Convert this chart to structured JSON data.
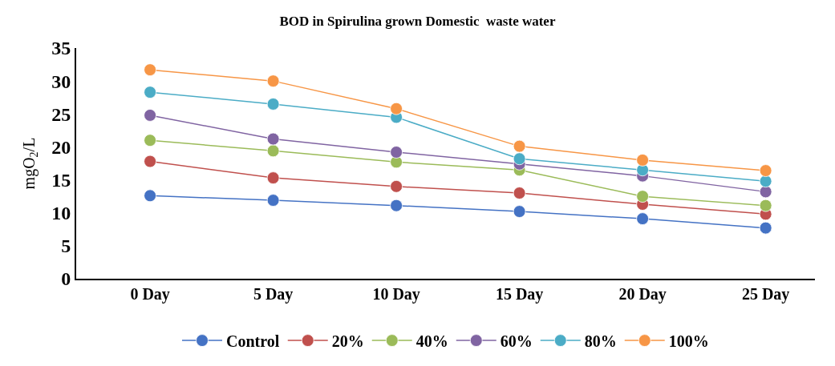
{
  "chart_data": {
    "type": "line",
    "title": "BOD in Spirulina grown Domestic  waste water",
    "ylabel": "mgO$_{2}$/L",
    "categories": [
      "0 Day",
      "5 Day",
      "10 Day",
      "15 Day",
      "20 Day",
      "25 Day"
    ],
    "series": [
      {
        "name": "Control",
        "color": "#4472c4",
        "values": [
          12.6,
          11.9,
          11.1,
          10.2,
          9.1,
          7.7
        ]
      },
      {
        "name": "20%",
        "color": "#c0504d",
        "values": [
          17.8,
          15.3,
          14.0,
          13.0,
          11.3,
          9.8
        ]
      },
      {
        "name": "40%",
        "color": "#9bbb59",
        "values": [
          21.0,
          19.4,
          17.7,
          16.5,
          12.5,
          11.1
        ]
      },
      {
        "name": "60%",
        "color": "#8064a2",
        "values": [
          24.8,
          21.2,
          19.2,
          17.4,
          15.6,
          13.2
        ]
      },
      {
        "name": "80%",
        "color": "#4bacc6",
        "values": [
          28.3,
          26.5,
          24.5,
          18.2,
          16.5,
          14.8
        ]
      },
      {
        "name": "100%",
        "color": "#f79646",
        "values": [
          31.7,
          30.0,
          25.8,
          20.1,
          18.0,
          16.4
        ]
      }
    ],
    "ylim": [
      0,
      35
    ],
    "yticks": [
      0,
      5,
      10,
      15,
      20,
      25,
      30,
      35
    ],
    "legend": "bottom",
    "marker": "circle",
    "line_style": "solid"
  }
}
